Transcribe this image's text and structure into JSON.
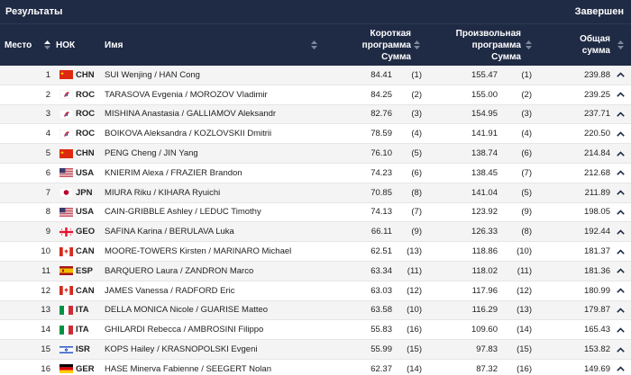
{
  "topbar": {
    "title": "Результаты",
    "status": "Завершен"
  },
  "header": {
    "rank": "Место",
    "noc": "НОК",
    "name": "Имя",
    "short_l1": "Короткая",
    "short_l2": "программа",
    "short_l3": "Сумма",
    "free_l1": "Произвольная",
    "free_l2": "программа",
    "free_l3": "Сумма",
    "total_l1": "Общая",
    "total_l2": "сумма"
  },
  "rows": [
    {
      "rank": "1",
      "noc": "CHN",
      "flag": "chn",
      "name": "SUI Wenjing / HAN Cong",
      "short": "84.41",
      "short_rank": "(1)",
      "free": "155.47",
      "free_rank": "(1)",
      "total": "239.88"
    },
    {
      "rank": "2",
      "noc": "ROC",
      "flag": "roc",
      "name": "TARASOVA Evgenia / MOROZOV Vladimir",
      "short": "84.25",
      "short_rank": "(2)",
      "free": "155.00",
      "free_rank": "(2)",
      "total": "239.25"
    },
    {
      "rank": "3",
      "noc": "ROC",
      "flag": "roc",
      "name": "MISHINA Anastasia / GALLIAMOV Aleksandr",
      "short": "82.76",
      "short_rank": "(3)",
      "free": "154.95",
      "free_rank": "(3)",
      "total": "237.71"
    },
    {
      "rank": "4",
      "noc": "ROC",
      "flag": "roc",
      "name": "BOIKOVA Aleksandra / KOZLOVSKII Dmitrii",
      "short": "78.59",
      "short_rank": "(4)",
      "free": "141.91",
      "free_rank": "(4)",
      "total": "220.50"
    },
    {
      "rank": "5",
      "noc": "CHN",
      "flag": "chn",
      "name": "PENG Cheng / JIN Yang",
      "short": "76.10",
      "short_rank": "(5)",
      "free": "138.74",
      "free_rank": "(6)",
      "total": "214.84"
    },
    {
      "rank": "6",
      "noc": "USA",
      "flag": "usa",
      "name": "KNIERIM Alexa / FRAZIER Brandon",
      "short": "74.23",
      "short_rank": "(6)",
      "free": "138.45",
      "free_rank": "(7)",
      "total": "212.68"
    },
    {
      "rank": "7",
      "noc": "JPN",
      "flag": "jpn",
      "name": "MIURA Riku / KIHARA Ryuichi",
      "short": "70.85",
      "short_rank": "(8)",
      "free": "141.04",
      "free_rank": "(5)",
      "total": "211.89"
    },
    {
      "rank": "8",
      "noc": "USA",
      "flag": "usa",
      "name": "CAIN-GRIBBLE Ashley / LEDUC Timothy",
      "short": "74.13",
      "short_rank": "(7)",
      "free": "123.92",
      "free_rank": "(9)",
      "total": "198.05"
    },
    {
      "rank": "9",
      "noc": "GEO",
      "flag": "geo",
      "name": "SAFINA Karina / BERULAVA Luka",
      "short": "66.11",
      "short_rank": "(9)",
      "free": "126.33",
      "free_rank": "(8)",
      "total": "192.44"
    },
    {
      "rank": "10",
      "noc": "CAN",
      "flag": "can",
      "name": "MOORE-TOWERS Kirsten / MARINARO Michael",
      "short": "62.51",
      "short_rank": "(13)",
      "free": "118.86",
      "free_rank": "(10)",
      "total": "181.37"
    },
    {
      "rank": "11",
      "noc": "ESP",
      "flag": "esp",
      "name": "BARQUERO Laura / ZANDRON Marco",
      "short": "63.34",
      "short_rank": "(11)",
      "free": "118.02",
      "free_rank": "(11)",
      "total": "181.36"
    },
    {
      "rank": "12",
      "noc": "CAN",
      "flag": "can",
      "name": "JAMES Vanessa / RADFORD Eric",
      "short": "63.03",
      "short_rank": "(12)",
      "free": "117.96",
      "free_rank": "(12)",
      "total": "180.99"
    },
    {
      "rank": "13",
      "noc": "ITA",
      "flag": "ita",
      "name": "DELLA MONICA Nicole / GUARISE Matteo",
      "short": "63.58",
      "short_rank": "(10)",
      "free": "116.29",
      "free_rank": "(13)",
      "total": "179.87"
    },
    {
      "rank": "14",
      "noc": "ITA",
      "flag": "ita",
      "name": "GHILARDI Rebecca / AMBROSINI Filippo",
      "short": "55.83",
      "short_rank": "(16)",
      "free": "109.60",
      "free_rank": "(14)",
      "total": "165.43"
    },
    {
      "rank": "15",
      "noc": "ISR",
      "flag": "isr",
      "name": "KOPS Hailey / KRASNOPOLSKI Evgeni",
      "short": "55.99",
      "short_rank": "(15)",
      "free": "97.83",
      "free_rank": "(15)",
      "total": "153.82"
    },
    {
      "rank": "16",
      "noc": "GER",
      "flag": "ger",
      "name": "HASE Minerva Fabienne / SEEGERT Nolan",
      "short": "62.37",
      "short_rank": "(14)",
      "free": "87.32",
      "free_rank": "(16)",
      "total": "149.69"
    }
  ],
  "colors": {
    "header_bg": "#1f2a44",
    "row_alt": "#f4f4f4"
  },
  "icons": {
    "sort": "sort-arrows-icon",
    "expand": "chevron-up-icon"
  }
}
